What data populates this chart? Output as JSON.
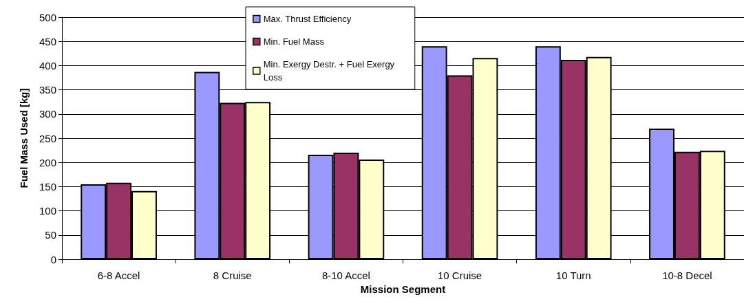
{
  "chart_data": {
    "type": "bar",
    "xlabel": "Mission Segment",
    "ylabel": "Fuel Mass Used [kg]",
    "categories": [
      "6-8 Accel",
      "8 Cruise",
      "8-10 Accel",
      "10 Cruise",
      "10 Turn",
      "10-8 Decel"
    ],
    "series": [
      {
        "name": "Max. Thrust Efficiency",
        "color": "#9999ff",
        "values": [
          155,
          387,
          216,
          440,
          440,
          270
        ]
      },
      {
        "name": "Min. Fuel Mass",
        "color": "#993366",
        "values": [
          158,
          323,
          220,
          380,
          412,
          222
        ]
      },
      {
        "name": "Min. Exergy Destr. + Fuel Exergy Loss",
        "color": "#ffffcc",
        "values": [
          141,
          325,
          206,
          416,
          418,
          224
        ]
      }
    ],
    "ylim": [
      0,
      500
    ],
    "yticks": [
      0,
      50,
      100,
      150,
      200,
      250,
      300,
      350,
      400,
      450,
      500
    ],
    "grid": "y",
    "legend": "top"
  }
}
